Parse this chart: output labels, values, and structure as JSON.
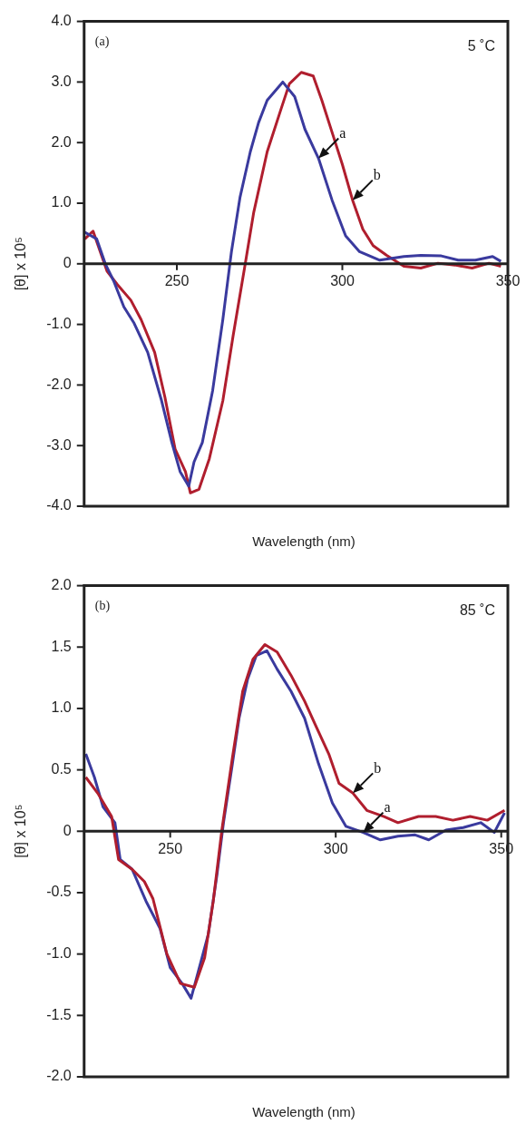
{
  "chart_data": [
    {
      "type": "line",
      "xlabel": "Wavelength (nm)",
      "ylabel": "[θ] x 10⁵",
      "xlim": [
        222,
        350
      ],
      "ylim": [
        -4.0,
        4.0
      ],
      "xticks": [
        250,
        300,
        350
      ],
      "yticks": [
        {
          "value": -4,
          "label": "-4.0"
        },
        {
          "value": -3,
          "label": "-3.0"
        },
        {
          "value": -2,
          "label": "-2.0"
        },
        {
          "value": -1,
          "label": "-1.0"
        },
        0,
        {
          "value": 1,
          "label": "1.0"
        },
        {
          "value": 2,
          "label": "2.0"
        },
        {
          "value": 3,
          "label": "3.0"
        },
        {
          "value": 4,
          "label": "4.0"
        }
      ],
      "grid": false,
      "legend": false,
      "marker": "none",
      "line_style": "solid",
      "annotations": [
        "(a)",
        "5 ˚C",
        {
          "text": "a",
          "x": 292.8,
          "y": 1.74
        },
        {
          "text": "b",
          "x": 303.1,
          "y": 1.05
        }
      ],
      "series": [
        {
          "color": "#3a3a9e",
          "x": [
            222.2,
            225.8,
            228.4,
            230.9,
            234,
            237.1,
            241.2,
            245.4,
            248.5,
            251,
            253.6,
            255.2,
            257.7,
            260.8,
            263.9,
            266.5,
            269.1,
            272.2,
            274.7,
            277.3,
            282,
            285.6,
            288.7,
            292.8,
            296.9,
            301,
            305.2,
            311.3,
            318.6,
            323.7,
            329.9,
            335,
            340.2,
            345.4,
            347.9
          ],
          "values": [
            0.52,
            0.41,
            0,
            -0.28,
            -0.71,
            -0.98,
            -1.46,
            -2.26,
            -2.95,
            -3.43,
            -3.67,
            -3.27,
            -2.95,
            -2.1,
            -0.92,
            0.2,
            1.1,
            1.85,
            2.33,
            2.7,
            3.0,
            2.76,
            2.22,
            1.74,
            1.05,
            0.46,
            0.2,
            0.06,
            0.12,
            0.14,
            0.13,
            0.06,
            0.06,
            0.12,
            0.04
          ]
        },
        {
          "color": "#b01e2e",
          "x": [
            222.2,
            224.7,
            228.9,
            232,
            236.1,
            239.2,
            243.3,
            246.4,
            249.5,
            252.6,
            254.1,
            256.7,
            259.8,
            263.9,
            267,
            270.6,
            273.2,
            277.3,
            281.4,
            284,
            287.6,
            291.2,
            293.8,
            296.9,
            300,
            303.1,
            306.2,
            309.3,
            313.4,
            318.6,
            323.7,
            328.9,
            334,
            339.2,
            344.3,
            347.9
          ],
          "values": [
            0.41,
            0.54,
            -0.12,
            -0.34,
            -0.6,
            -0.92,
            -1.46,
            -2.2,
            -3.06,
            -3.43,
            -3.78,
            -3.72,
            -3.22,
            -2.26,
            -1.19,
            -0.02,
            0.84,
            1.85,
            2.54,
            2.97,
            3.16,
            3.1,
            2.7,
            2.17,
            1.64,
            1.05,
            0.57,
            0.3,
            0.14,
            -0.04,
            -0.07,
            0.01,
            -0.02,
            -0.07,
            0.01,
            -0.04
          ]
        }
      ]
    },
    {
      "type": "line",
      "xlabel": "Wavelength (nm)",
      "ylabel": "[θ] x 10⁵",
      "xlim": [
        224,
        352
      ],
      "ylim": [
        -2.0,
        2.0
      ],
      "xticks": [
        250,
        300,
        350
      ],
      "yticks": [
        {
          "value": -2,
          "label": "-2.0"
        },
        {
          "value": -1.5,
          "label": "-1.5"
        },
        {
          "value": -1,
          "label": "-1.0"
        },
        {
          "value": -0.5,
          "label": "-0.5"
        },
        0,
        {
          "value": 0.5,
          "label": "0.5"
        },
        {
          "value": 1,
          "label": "1.0"
        },
        {
          "value": 1.5,
          "label": "1.5"
        },
        {
          "value": 2,
          "label": "2.0"
        }
      ],
      "grid": false,
      "legend": false,
      "marker": "none",
      "line_style": "solid",
      "annotations": [
        "(b)",
        "85 ˚C",
        {
          "text": "b",
          "x": 305.2,
          "y": 0.31
        },
        {
          "text": "a",
          "x": 308.3,
          "y": -0.01
        }
      ],
      "series": [
        {
          "color": "#b01e2e",
          "x": [
            224.5,
            228.1,
            232.3,
            234.4,
            238.5,
            242.2,
            244.8,
            249,
            253.1,
            257.3,
            260.4,
            263,
            265.6,
            268.8,
            271.9,
            275,
            278.6,
            282.3,
            286.5,
            290.6,
            293.8,
            297.9,
            301,
            305.2,
            309.4,
            314.6,
            318.8,
            325,
            330.2,
            335.4,
            340.6,
            345.8,
            351
          ],
          "values": [
            0.44,
            0.31,
            0.12,
            -0.23,
            -0.31,
            -0.41,
            -0.55,
            -1.0,
            -1.24,
            -1.27,
            -1.03,
            -0.57,
            0.01,
            0.6,
            1.14,
            1.4,
            1.52,
            1.46,
            1.27,
            1.06,
            0.87,
            0.63,
            0.39,
            0.31,
            0.17,
            0.12,
            0.07,
            0.12,
            0.12,
            0.09,
            0.12,
            0.09,
            0.17
          ]
        },
        {
          "color": "#3a3a9e",
          "x": [
            224.5,
            227.1,
            229.7,
            233.3,
            234.9,
            238.5,
            242.7,
            246.9,
            250,
            253.6,
            256.3,
            258.3,
            261.5,
            264.1,
            266.1,
            268.8,
            270.8,
            273.4,
            276,
            279.2,
            282.3,
            286.5,
            290.6,
            294.8,
            299,
            303.1,
            308.3,
            313.5,
            318.8,
            324,
            328.1,
            333.3,
            338.5,
            343.8,
            347.9,
            351
          ],
          "values": [
            0.63,
            0.44,
            0.2,
            0.07,
            -0.23,
            -0.31,
            -0.57,
            -0.79,
            -1.11,
            -1.24,
            -1.36,
            -1.16,
            -0.84,
            -0.36,
            0.07,
            0.55,
            0.92,
            1.24,
            1.43,
            1.47,
            1.32,
            1.14,
            0.92,
            0.55,
            0.23,
            0.04,
            -0.01,
            -0.07,
            -0.04,
            -0.03,
            -0.07,
            0.01,
            0.03,
            0.07,
            -0.01,
            0.15
          ]
        }
      ]
    }
  ]
}
